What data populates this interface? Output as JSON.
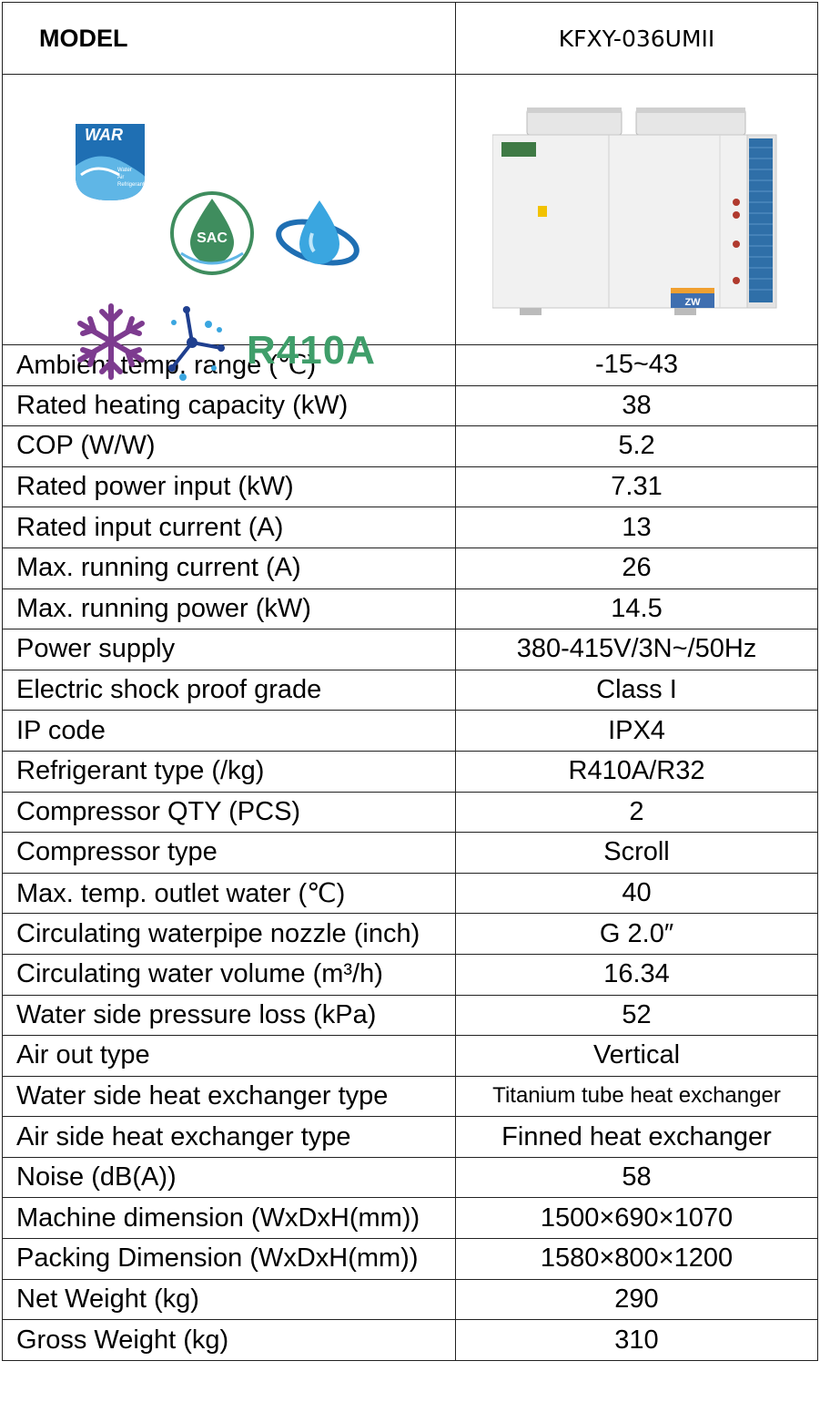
{
  "header": {
    "model_label": "MODEL",
    "model_value": "KFXY-036UMII"
  },
  "logos": {
    "war_text": "WAR",
    "war_sub": "Water Air Refrigerant",
    "sac_text": "SAC",
    "refrigerant_logo": "R410A",
    "icons": [
      "war-logo",
      "sac-logo",
      "water-drop-orbit-logo",
      "snowflake-icon",
      "molecule-icon",
      "r410a-logo"
    ]
  },
  "product": {
    "badge_text": "ZW"
  },
  "rows": [
    {
      "label": "Ambient temp. range (℃)",
      "value": "-15~43"
    },
    {
      "label": "Rated heating capacity (kW)",
      "value": "38"
    },
    {
      "label": "COP (W/W)",
      "value": "5.2"
    },
    {
      "label": "Rated power input (kW)",
      "value": "7.31"
    },
    {
      "label": "Rated input current (A)",
      "value": "13"
    },
    {
      "label": "Max. running current (A)",
      "value": "26"
    },
    {
      "label": "Max. running power (kW)",
      "value": "14.5"
    },
    {
      "label": "Power supply",
      "value": "380-415V/3N~/50Hz"
    },
    {
      "label": "Electric shock proof grade",
      "value": "Class I"
    },
    {
      "label": "IP code",
      "value": "IPX4"
    },
    {
      "label": "Refrigerant type (/kg)",
      "value": "R410A/R32"
    },
    {
      "label": "Compressor QTY (PCS)",
      "value": "2"
    },
    {
      "label": "Compressor type",
      "value": "Scroll"
    },
    {
      "label": "Max. temp. outlet water (℃)",
      "value": "40"
    },
    {
      "label": "Circulating waterpipe nozzle (inch)",
      "value": "G 2.0″"
    },
    {
      "label": "Circulating water volume (m³/h)",
      "value": "16.34"
    },
    {
      "label": "Water side pressure loss (kPa)",
      "value": "52"
    },
    {
      "label": "Air out type",
      "value": "Vertical"
    },
    {
      "label": "Water side heat exchanger type",
      "value": "Titanium tube heat exchanger"
    },
    {
      "label": "Air side heat exchanger type",
      "value": "Finned heat exchanger"
    },
    {
      "label": "Noise (dB(A))",
      "value": "58"
    },
    {
      "label": "Machine dimension (WxDxH(mm))",
      "value": "1500×690×1070"
    },
    {
      "label": "Packing Dimension (WxDxH(mm))",
      "value": "1580×800×1200"
    },
    {
      "label": "Net Weight (kg)",
      "value": "290"
    },
    {
      "label": "Gross Weight (kg)",
      "value": "310"
    }
  ]
}
